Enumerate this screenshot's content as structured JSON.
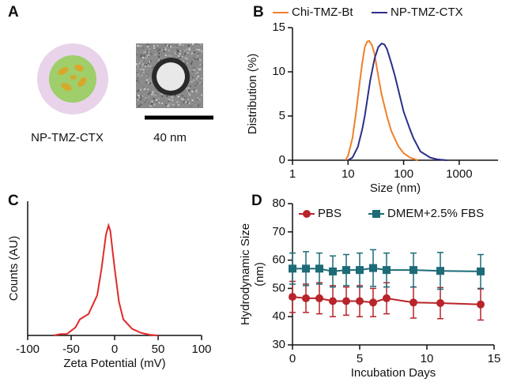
{
  "panel_labels": [
    "A",
    "B",
    "C",
    "D"
  ],
  "panel_a": {
    "caption": "NP-TMZ-CTX",
    "scale_bar": "40 nm"
  },
  "chart_data": [
    {
      "type": "line",
      "xscale": "log",
      "xlabel": "Size (nm)",
      "ylabel": [
        "Distribution (%)"
      ],
      "xlim": [
        1,
        5000
      ],
      "xticks": [
        1,
        10,
        100,
        1000
      ],
      "ylim": [
        0,
        15
      ],
      "yticks": [
        0,
        5,
        10,
        15
      ],
      "legend": "top",
      "series": [
        {
          "name": "Chi-TMZ-Bt",
          "color": "#f07f2a",
          "x": [
            9,
            10,
            12,
            14,
            16,
            18,
            20,
            22,
            24,
            27,
            30,
            35,
            40,
            50,
            60,
            80,
            100,
            130,
            180
          ],
          "values": [
            0,
            0.5,
            2.5,
            5.5,
            8.5,
            11,
            12.8,
            13.4,
            13.5,
            13,
            12,
            9.5,
            7.5,
            5,
            3.3,
            1.6,
            0.8,
            0.3,
            0
          ]
        },
        {
          "name": "NP-TMZ-CTX",
          "color": "#2b2f86",
          "x": [
            10,
            12,
            15,
            18,
            20,
            25,
            30,
            35,
            40,
            45,
            50,
            60,
            70,
            80,
            100,
            130,
            150,
            200,
            300,
            400,
            600
          ],
          "values": [
            0,
            0.3,
            1.5,
            3.5,
            5,
            9,
            11.5,
            12.8,
            13.2,
            13.1,
            12.6,
            11,
            9.5,
            8,
            5.5,
            3.5,
            2.5,
            1,
            0.3,
            0.1,
            0
          ]
        }
      ]
    },
    {
      "type": "line",
      "xlabel": "Zeta Potential (mV)",
      "ylabel": [
        "Counts (AU)"
      ],
      "xlim": [
        -100,
        100
      ],
      "xticks": [
        -100,
        -50,
        0,
        50,
        100
      ],
      "ylim": [
        0,
        100
      ],
      "series": [
        {
          "color": "#e02a2a",
          "x": [
            -70,
            -62,
            -55,
            -45,
            -40,
            -30,
            -20,
            -15,
            -10,
            -7,
            -5,
            0,
            5,
            10,
            20,
            30,
            40,
            50
          ],
          "values": [
            0,
            1,
            1,
            6,
            12,
            16,
            30,
            50,
            75,
            82,
            78,
            50,
            25,
            12,
            5,
            2,
            0.5,
            0
          ]
        }
      ]
    },
    {
      "type": "line",
      "xlabel": "Incubation Days",
      "ylabel": [
        "Hydrodynamic Size",
        "(nm)"
      ],
      "xlim": [
        0,
        15
      ],
      "xticks": [
        0,
        5,
        10,
        15
      ],
      "ylim": [
        30,
        80
      ],
      "yticks": [
        30,
        40,
        50,
        60,
        70,
        80
      ],
      "legend": "inside-top",
      "x": [
        0,
        1,
        2,
        3,
        4,
        5,
        6,
        7,
        9,
        11,
        14
      ],
      "series": [
        {
          "name": "PBS",
          "color": "#b8242a",
          "marker": "circle",
          "values": [
            47,
            46.5,
            46.5,
            45.5,
            45.5,
            45.5,
            45,
            46.5,
            45,
            44.8,
            44.3
          ],
          "errors": [
            5.5,
            5,
            5.5,
            5.5,
            5,
            5.5,
            5,
            5.5,
            5.5,
            5.5,
            5.5
          ]
        },
        {
          "name": "DMEM+2.5% FBS",
          "color": "#1d6b77",
          "marker": "square",
          "values": [
            57,
            57,
            57,
            56,
            56.5,
            56.5,
            57.2,
            56.5,
            56.5,
            56.2,
            56
          ],
          "errors": [
            5.5,
            6,
            5.5,
            5.5,
            5.5,
            6,
            6.5,
            6,
            6,
            6.5,
            6
          ]
        }
      ]
    }
  ]
}
